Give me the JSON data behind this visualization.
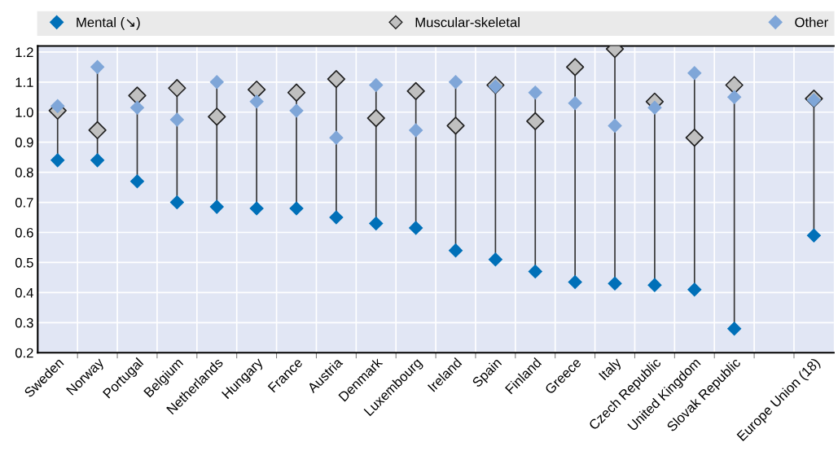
{
  "chart_data": {
    "type": "scatter",
    "marker": "diamond",
    "grid": true,
    "legend": "top",
    "categories": [
      "Sweden",
      "Norway",
      "Portugal",
      "Belgium",
      "Netherlands",
      "Hungary",
      "France",
      "Austria",
      "Denmark",
      "Luxembourg",
      "Ireland",
      "Spain",
      "Finland",
      "Greece",
      "Italy",
      "Czech Republic",
      "United Kingdom",
      "Slovak Republic",
      null,
      "Europe Union (18)"
    ],
    "ylim": [
      0.2,
      1.22
    ],
    "yticks": [
      {
        "value": 0.2,
        "label": "0.2"
      },
      {
        "value": 0.3,
        "label": "0.3"
      },
      {
        "value": 0.4,
        "label": "0.4"
      },
      {
        "value": 0.5,
        "label": "0.5"
      },
      {
        "value": 0.6,
        "label": "0.6"
      },
      {
        "value": 0.7,
        "label": "0.7"
      },
      {
        "value": 0.8,
        "label": "0.8"
      },
      {
        "value": 0.9,
        "label": "0.9"
      },
      {
        "value": 1.0,
        "label": "1.0"
      },
      {
        "value": 1.1,
        "label": "1.1"
      },
      {
        "value": 1.2,
        "label": "1.2"
      }
    ],
    "series": [
      {
        "name": "Mental (↘)",
        "color": "#0070b8",
        "values": [
          0.84,
          0.84,
          0.77,
          0.7,
          0.685,
          0.68,
          0.68,
          0.65,
          0.63,
          0.615,
          0.54,
          0.51,
          0.47,
          0.435,
          0.43,
          0.425,
          0.41,
          0.28,
          null,
          0.59
        ]
      },
      {
        "name": "Muscular-skeletal",
        "color": "#c0c0c0",
        "values": [
          1.005,
          0.94,
          1.055,
          1.08,
          0.985,
          1.075,
          1.065,
          1.11,
          0.98,
          1.07,
          0.955,
          1.09,
          0.97,
          1.15,
          1.21,
          1.035,
          0.915,
          1.09,
          null,
          1.045
        ]
      },
      {
        "name": "Other",
        "color": "#7fa6d8",
        "values": [
          1.02,
          1.15,
          1.015,
          0.975,
          1.1,
          1.035,
          1.005,
          0.915,
          1.09,
          0.94,
          1.1,
          1.085,
          1.065,
          1.03,
          0.955,
          1.015,
          1.13,
          1.05,
          null,
          1.04
        ]
      }
    ]
  }
}
